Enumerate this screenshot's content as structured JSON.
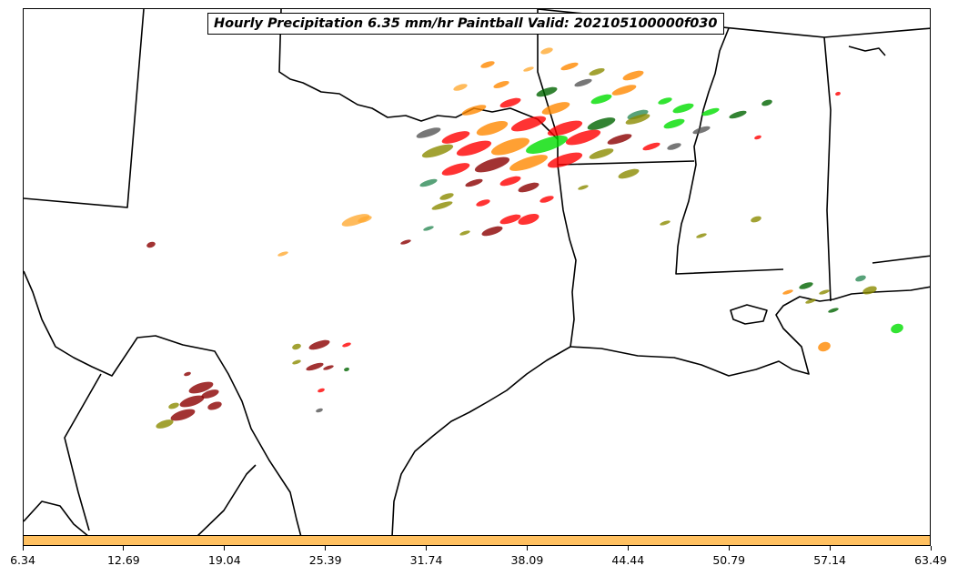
{
  "title": "Hourly Precipitation 6.35 mm/hr Paintball Valid: 202105100000f030",
  "colorbar": {
    "color": "#ffc060",
    "ticks": [
      "6.34",
      "12.69",
      "19.04",
      "25.39",
      "31.74",
      "38.09",
      "44.44",
      "50.79",
      "57.14",
      "63.49"
    ]
  },
  "member_colors": [
    "#ff0000",
    "#00dd00",
    "#ff8800",
    "#ffaa33",
    "#8b0000",
    "#006400",
    "#8b8b00",
    "#555555",
    "#2e8b57",
    "#9acd32"
  ],
  "map": {
    "region": "Southern Plains / Gulf Coast",
    "features": [
      "state-borders",
      "coastline",
      "precipitation-paintballs"
    ]
  }
}
